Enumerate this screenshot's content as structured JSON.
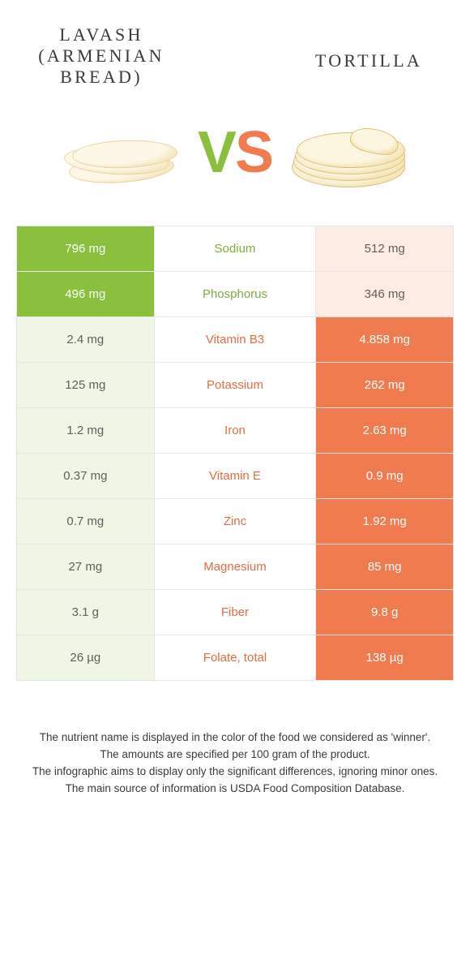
{
  "colors": {
    "green_full": "#8bbf3e",
    "green_pale": "#f0f6e5",
    "orange_full": "#ef7b4e",
    "orange_pale": "#fdece3",
    "label_green": "#7fae3a",
    "label_orange": "#e46d3f",
    "border": "#e6e6e6",
    "text": "#3a3a3a"
  },
  "header": {
    "left_line1": "LAVASH",
    "left_line2": "(ARMENIAN",
    "left_line3": "BREAD)",
    "right": "TORTILLA",
    "vs_v": "V",
    "vs_s": "S"
  },
  "rows": [
    {
      "nutrient": "Sodium",
      "left": "796 mg",
      "right": "512 mg",
      "winner": "left"
    },
    {
      "nutrient": "Phosphorus",
      "left": "496 mg",
      "right": "346 mg",
      "winner": "left"
    },
    {
      "nutrient": "Vitamin B3",
      "left": "2.4 mg",
      "right": "4.858 mg",
      "winner": "right"
    },
    {
      "nutrient": "Potassium",
      "left": "125 mg",
      "right": "262 mg",
      "winner": "right"
    },
    {
      "nutrient": "Iron",
      "left": "1.2 mg",
      "right": "2.63 mg",
      "winner": "right"
    },
    {
      "nutrient": "Vitamin E",
      "left": "0.37 mg",
      "right": "0.9 mg",
      "winner": "right"
    },
    {
      "nutrient": "Zinc",
      "left": "0.7 mg",
      "right": "1.92 mg",
      "winner": "right"
    },
    {
      "nutrient": "Magnesium",
      "left": "27 mg",
      "right": "85 mg",
      "winner": "right"
    },
    {
      "nutrient": "Fiber",
      "left": "3.1 g",
      "right": "9.8 g",
      "winner": "right"
    },
    {
      "nutrient": "Folate, total",
      "left": "26 µg",
      "right": "138 µg",
      "winner": "right"
    }
  ],
  "footnotes": {
    "l1": "The nutrient name is displayed in the color of the food we considered as 'winner'.",
    "l2": "The amounts are specified per 100 gram of the product.",
    "l3": "The infographic aims to display only the significant differences, ignoring minor ones.",
    "l4": "The main source of information is USDA Food Composition Database."
  }
}
